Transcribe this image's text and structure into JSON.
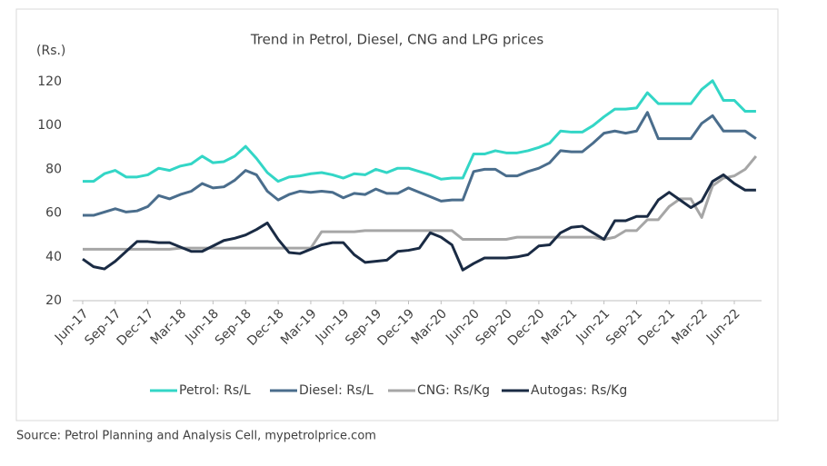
{
  "chart_data": {
    "type": "line",
    "title": "Trend in Petrol, Diesel, CNG and LPG prices",
    "y_label": "(Rs.)",
    "source": "Source: Petrol Planning and Analysis Cell, mypetrolprice.com",
    "categories": [
      "Jun-17",
      null,
      null,
      "Sep-17",
      null,
      null,
      "Dec-17",
      null,
      null,
      "Mar-18",
      null,
      null,
      "Jun-18",
      null,
      null,
      "Sep-18",
      null,
      null,
      "Dec-18",
      null,
      null,
      "Mar-19",
      null,
      null,
      "Jun-19",
      null,
      null,
      "Sep-19",
      null,
      null,
      "Dec-19",
      null,
      null,
      "Mar-20",
      null,
      null,
      "Jun-20",
      null,
      null,
      "Sep-20",
      null,
      null,
      "Dec-20",
      null,
      null,
      "Mar-21",
      null,
      null,
      "Jun-21",
      null,
      null,
      "Sep-21",
      null,
      null,
      "Dec-21",
      null,
      null,
      "Mar-22",
      null,
      null,
      "Jun-22",
      null,
      null
    ],
    "series": [
      {
        "name": "Petrol: Rs/L",
        "color": "#33d6c6",
        "values": [
          74.5,
          74.5,
          78,
          79.5,
          76.5,
          76.5,
          77.5,
          80.5,
          79.5,
          81.5,
          82.5,
          86,
          83,
          83.5,
          86,
          90.5,
          85,
          78.5,
          74.5,
          76.5,
          77,
          78,
          78.5,
          77.5,
          76,
          78,
          77.5,
          80,
          78.5,
          80.5,
          80.5,
          79,
          77.5,
          75.5,
          76,
          76,
          87,
          87,
          88.5,
          87.5,
          87.5,
          88.5,
          90,
          92,
          97.5,
          97,
          97,
          100,
          104,
          107.5,
          107.5,
          108,
          115,
          110,
          110,
          110,
          110,
          116.5,
          120.5,
          111.5,
          111.5,
          106.5,
          106.5
        ]
      },
      {
        "name": "Diesel: Rs/L",
        "color": "#4a6d8c",
        "values": [
          59,
          59,
          60.5,
          62,
          60.5,
          61,
          63,
          68,
          66.5,
          68.5,
          70,
          73.5,
          71.5,
          72,
          75,
          79.5,
          77.5,
          70,
          66,
          68.5,
          70,
          69.5,
          70,
          69.5,
          67,
          69,
          68.5,
          71,
          69,
          69,
          71.5,
          69.5,
          67.5,
          65.5,
          66,
          66,
          79,
          80,
          80,
          77,
          77,
          79,
          80.5,
          83,
          88.5,
          88,
          88,
          92,
          96.5,
          97.5,
          96.5,
          97.5,
          106,
          94,
          94,
          94,
          94,
          101,
          104.5,
          97.5,
          97.5,
          97.5,
          94
        ]
      },
      {
        "name": "CNG: Rs/Kg",
        "color": "#a6a6a6",
        "values": [
          43.5,
          43.5,
          43.5,
          43.5,
          43.5,
          43.5,
          43.5,
          43.5,
          43.5,
          44,
          44,
          44,
          44,
          44,
          44,
          44,
          44,
          44,
          44,
          44,
          44,
          44,
          51.5,
          51.5,
          51.5,
          51.5,
          52,
          52,
          52,
          52,
          52,
          52,
          52,
          52,
          52,
          48,
          48,
          48,
          48,
          48,
          49,
          49,
          49,
          49,
          49,
          49,
          49,
          49,
          48,
          49,
          52,
          52,
          57,
          57,
          63,
          66.5,
          66.5,
          58,
          72.5,
          76,
          77,
          80,
          86
        ]
      },
      {
        "name": "Autogas: Rs/Kg",
        "color": "#1a2b44",
        "values": [
          39,
          35.5,
          34.5,
          38,
          42.5,
          47,
          47,
          46.5,
          46.5,
          44.5,
          42.5,
          42.5,
          45,
          47.5,
          48.5,
          50,
          52.5,
          55.5,
          48,
          42,
          41.5,
          43.5,
          45.5,
          46.5,
          46.5,
          41,
          37.5,
          38,
          38.5,
          42.5,
          43,
          44,
          51,
          49,
          45.5,
          34,
          37,
          39.5,
          39.5,
          39.5,
          40,
          41,
          45,
          45.5,
          51,
          53.5,
          54,
          51,
          48,
          56.5,
          56.5,
          58.5,
          58.5,
          66,
          69.5,
          66,
          62.5,
          65.5,
          74.5,
          77.5,
          73.5,
          70.5,
          70.5
        ]
      }
    ],
    "ylim": [
      20,
      120
    ],
    "yticks": [
      20,
      40,
      60,
      80,
      100,
      120
    ],
    "legend": "bottom"
  }
}
